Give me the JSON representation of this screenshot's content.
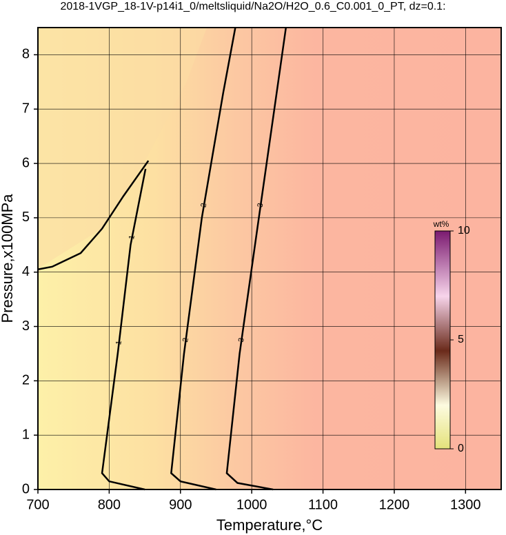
{
  "chart_data": {
    "type": "contour",
    "title": "2018-1VGP_18-1V-p14i1_0/meltsliquid/Na2O/H2O_0.6_C0.001_0_PT, dz=0.1:",
    "x_label": "Temperature,°C",
    "y_label": "Pressure,x100MPa",
    "xlim": [
      700,
      1350
    ],
    "ylim": [
      0,
      8.5
    ],
    "xticks": [
      700,
      800,
      900,
      1000,
      1100,
      1200,
      1300
    ],
    "yticks": [
      0,
      1,
      2,
      3,
      4,
      5,
      6,
      7,
      8
    ],
    "grid": true,
    "contours": [
      {
        "level": 1,
        "x": [
          850,
          800,
          790,
          812,
          830,
          851
        ],
        "y": [
          0,
          0.15,
          0.3,
          2.5,
          4.5,
          5.9
        ]
      },
      {
        "level": 2,
        "x": [
          950,
          900,
          887,
          905,
          930,
          960,
          977
        ],
        "y": [
          0,
          0.15,
          0.3,
          2.5,
          5,
          7.3,
          8.5
        ]
      },
      {
        "level": 3,
        "x": [
          1030,
          980,
          965,
          983,
          1010,
          1035,
          1048
        ],
        "y": [
          0,
          0.12,
          0.3,
          2.5,
          5,
          7.3,
          8.5
        ]
      }
    ],
    "boundary": {
      "x": [
        700,
        720,
        760,
        790,
        820,
        855
      ],
      "y": [
        4.05,
        4.1,
        4.35,
        4.8,
        5.4,
        6.05
      ]
    },
    "colorbar": {
      "label": "wt%",
      "lim": [
        0,
        10
      ],
      "ticks": [
        0,
        5,
        10
      ]
    }
  }
}
